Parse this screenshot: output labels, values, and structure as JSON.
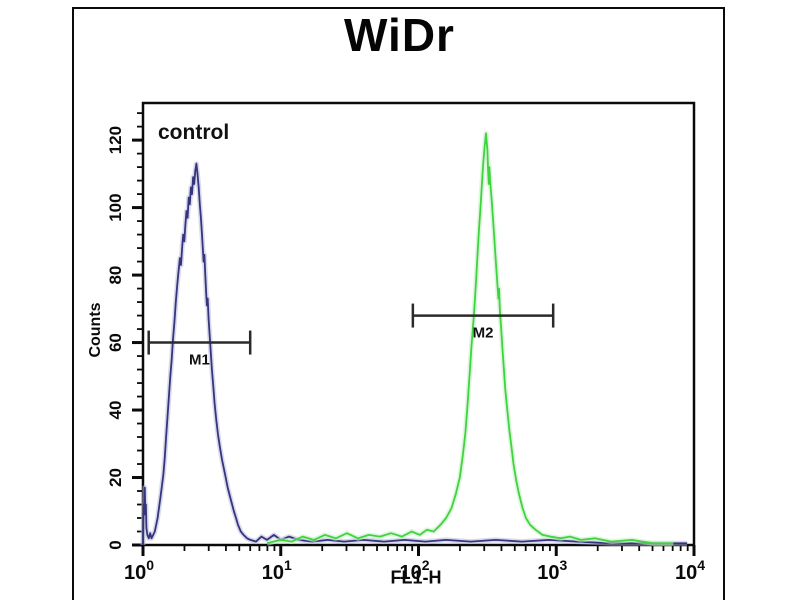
{
  "title": "WiDr",
  "chart_data": {
    "type": "line",
    "subtype": "flow-cytometry-histogram-overlay",
    "title": "WiDr",
    "xlabel": "FL1-H",
    "ylabel": "Counts",
    "x_scale": "log10",
    "xlim": [
      1,
      10000
    ],
    "ylim": [
      0,
      131
    ],
    "x_tick_exponents": [
      0,
      1,
      2,
      3,
      4
    ],
    "y_ticks": [
      0,
      20,
      40,
      60,
      80,
      100,
      120
    ],
    "y_minor_step": 4,
    "grid": false,
    "legend": "none",
    "annotation": "control",
    "frame_color": "#0a0a0a",
    "series": [
      {
        "name": "control",
        "color": "#35357d",
        "halo_color": "#b9b9dd",
        "peak": {
          "x": 2.5,
          "x_log10": 0.39,
          "counts": 113
        },
        "points_log10x_counts": [
          [
            0.0,
            0
          ],
          [
            0.003,
            7
          ],
          [
            0.006,
            12
          ],
          [
            0.01,
            9
          ],
          [
            0.013,
            17
          ],
          [
            0.017,
            10
          ],
          [
            0.021,
            12
          ],
          [
            0.025,
            5
          ],
          [
            0.032,
            3
          ],
          [
            0.042,
            2
          ],
          [
            0.052,
            3.5
          ],
          [
            0.062,
            2
          ],
          [
            0.074,
            3
          ],
          [
            0.086,
            4
          ],
          [
            0.096,
            6
          ],
          [
            0.106,
            8
          ],
          [
            0.116,
            11
          ],
          [
            0.126,
            14
          ],
          [
            0.136,
            17
          ],
          [
            0.148,
            21
          ],
          [
            0.158,
            26
          ],
          [
            0.168,
            32
          ],
          [
            0.178,
            38
          ],
          [
            0.188,
            44
          ],
          [
            0.198,
            50
          ],
          [
            0.208,
            55
          ],
          [
            0.218,
            61
          ],
          [
            0.228,
            66
          ],
          [
            0.238,
            72
          ],
          [
            0.248,
            77
          ],
          [
            0.258,
            81
          ],
          [
            0.268,
            85
          ],
          [
            0.276,
            83
          ],
          [
            0.284,
            88
          ],
          [
            0.292,
            92
          ],
          [
            0.3,
            90
          ],
          [
            0.308,
            95
          ],
          [
            0.316,
            99
          ],
          [
            0.324,
            97
          ],
          [
            0.332,
            103
          ],
          [
            0.34,
            101
          ],
          [
            0.348,
            106
          ],
          [
            0.356,
            104
          ],
          [
            0.364,
            109
          ],
          [
            0.372,
            107
          ],
          [
            0.38,
            111
          ],
          [
            0.388,
            113
          ],
          [
            0.396,
            110
          ],
          [
            0.404,
            106
          ],
          [
            0.412,
            101
          ],
          [
            0.42,
            97
          ],
          [
            0.428,
            92
          ],
          [
            0.434,
            88
          ],
          [
            0.44,
            84
          ],
          [
            0.446,
            86
          ],
          [
            0.452,
            80
          ],
          [
            0.458,
            75
          ],
          [
            0.464,
            71
          ],
          [
            0.47,
            73
          ],
          [
            0.476,
            67
          ],
          [
            0.484,
            62
          ],
          [
            0.492,
            57
          ],
          [
            0.5,
            52
          ],
          [
            0.51,
            47
          ],
          [
            0.52,
            42
          ],
          [
            0.532,
            37
          ],
          [
            0.544,
            33
          ],
          [
            0.558,
            29
          ],
          [
            0.575,
            25
          ],
          [
            0.595,
            21
          ],
          [
            0.615,
            17
          ],
          [
            0.64,
            13
          ],
          [
            0.66,
            10
          ],
          [
            0.675,
            8
          ],
          [
            0.69,
            6
          ],
          [
            0.71,
            4
          ],
          [
            0.73,
            3
          ],
          [
            0.755,
            2
          ],
          [
            0.78,
            1.5
          ],
          [
            0.82,
            1
          ],
          [
            0.86,
            2.5
          ],
          [
            0.9,
            1.5
          ],
          [
            0.95,
            3
          ],
          [
            1.0,
            1.5
          ],
          [
            1.06,
            2.5
          ],
          [
            1.13,
            1.5
          ],
          [
            1.23,
            1
          ],
          [
            1.34,
            1.5
          ],
          [
            1.46,
            1
          ],
          [
            1.6,
            1.5
          ],
          [
            1.75,
            1
          ],
          [
            1.9,
            1.5
          ],
          [
            2.05,
            1
          ],
          [
            2.2,
            1.5
          ],
          [
            2.38,
            1
          ],
          [
            2.56,
            1.5
          ],
          [
            2.75,
            1
          ],
          [
            2.95,
            1.5
          ],
          [
            3.15,
            1
          ],
          [
            3.4,
            0.5
          ],
          [
            3.7,
            0.5
          ],
          [
            3.95,
            0.5
          ]
        ]
      },
      {
        "name": "green-histogram",
        "color": "#3ed43e",
        "halo_color": "#c3eec3",
        "peak": {
          "x": 316,
          "x_log10": 2.49,
          "counts": 122
        },
        "points_log10x_counts": [
          [
            0.9,
            0.5
          ],
          [
            1.0,
            1.5
          ],
          [
            1.08,
            1
          ],
          [
            1.16,
            2.5
          ],
          [
            1.24,
            1.5
          ],
          [
            1.32,
            3
          ],
          [
            1.4,
            2
          ],
          [
            1.48,
            3.5
          ],
          [
            1.56,
            2
          ],
          [
            1.64,
            3
          ],
          [
            1.72,
            2.5
          ],
          [
            1.8,
            3.5
          ],
          [
            1.88,
            2.5
          ],
          [
            1.95,
            4
          ],
          [
            2.01,
            3
          ],
          [
            2.06,
            4.5
          ],
          [
            2.11,
            4
          ],
          [
            2.16,
            6
          ],
          [
            2.2,
            8
          ],
          [
            2.24,
            11
          ],
          [
            2.27,
            15
          ],
          [
            2.3,
            20
          ],
          [
            2.32,
            26
          ],
          [
            2.34,
            33
          ],
          [
            2.355,
            41
          ],
          [
            2.37,
            50
          ],
          [
            2.385,
            59
          ],
          [
            2.4,
            67
          ],
          [
            2.41,
            73
          ],
          [
            2.42,
            80
          ],
          [
            2.43,
            87
          ],
          [
            2.44,
            94
          ],
          [
            2.45,
            100
          ],
          [
            2.46,
            107
          ],
          [
            2.47,
            113
          ],
          [
            2.48,
            118
          ],
          [
            2.49,
            122
          ],
          [
            2.5,
            117
          ],
          [
            2.505,
            111
          ],
          [
            2.51,
            107
          ],
          [
            2.515,
            112
          ],
          [
            2.52,
            108
          ],
          [
            2.53,
            103
          ],
          [
            2.54,
            97
          ],
          [
            2.55,
            91
          ],
          [
            2.56,
            85
          ],
          [
            2.57,
            79
          ],
          [
            2.58,
            73
          ],
          [
            2.585,
            76
          ],
          [
            2.59,
            70
          ],
          [
            2.6,
            64
          ],
          [
            2.61,
            58
          ],
          [
            2.62,
            52
          ],
          [
            2.63,
            46
          ],
          [
            2.645,
            40
          ],
          [
            2.66,
            34
          ],
          [
            2.675,
            29
          ],
          [
            2.69,
            24
          ],
          [
            2.71,
            19
          ],
          [
            2.73,
            15
          ],
          [
            2.755,
            11
          ],
          [
            2.78,
            8
          ],
          [
            2.81,
            6
          ],
          [
            2.85,
            4.5
          ],
          [
            2.9,
            3
          ],
          [
            2.96,
            2.5
          ],
          [
            3.03,
            2
          ],
          [
            3.1,
            2.5
          ],
          [
            3.18,
            1.5
          ],
          [
            3.28,
            2
          ],
          [
            3.4,
            1
          ],
          [
            3.55,
            1.5
          ],
          [
            3.7,
            0.5
          ],
          [
            3.85,
            0.5
          ]
        ]
      }
    ],
    "gates": [
      {
        "label": "M1",
        "x_from": 1.1,
        "x_to": 6.0,
        "y_counts": 60,
        "color": "#2a2a2a"
      },
      {
        "label": "M2",
        "x_from": 91,
        "x_to": 950,
        "y_counts": 68,
        "color": "#2a2a2a"
      }
    ]
  }
}
